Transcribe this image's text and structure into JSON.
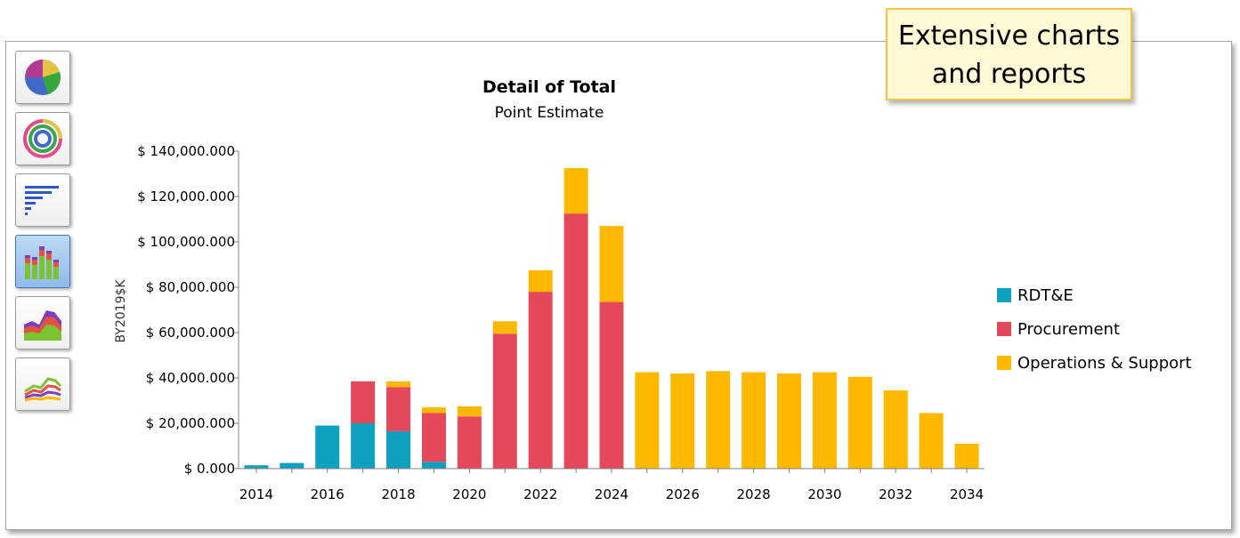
{
  "callout": {
    "line1": "Extensive charts",
    "line2": "and reports"
  },
  "toolbar": {
    "buttons": [
      {
        "icon": "pie-chart-icon",
        "active": false
      },
      {
        "icon": "ring-chart-icon",
        "active": false
      },
      {
        "icon": "horizontal-bar-chart-icon",
        "active": false
      },
      {
        "icon": "stacked-bar-chart-icon",
        "active": true
      },
      {
        "icon": "area-chart-icon",
        "active": false
      },
      {
        "icon": "line-chart-icon",
        "active": false
      }
    ]
  },
  "chart_data": {
    "type": "bar",
    "stacked": true,
    "title": "Detail of Total",
    "subtitle": "Point Estimate",
    "ylabel": "BY2019$K",
    "xlabel": "",
    "ylim": [
      0,
      140000
    ],
    "yticks": [
      0,
      20000,
      40000,
      60000,
      80000,
      100000,
      120000,
      140000
    ],
    "ytick_labels": [
      "$ 0.000",
      "$ 20,000.000",
      "$ 40,000.000",
      "$ 60,000.000",
      "$ 80,000.000",
      "$ 100,000.000",
      "$ 120,000.000",
      "$ 140,000.000"
    ],
    "categories": [
      "2014",
      "2015",
      "2016",
      "2017",
      "2018",
      "2019",
      "2020",
      "2021",
      "2022",
      "2023",
      "2024",
      "2025",
      "2026",
      "2027",
      "2028",
      "2029",
      "2030",
      "2031",
      "2032",
      "2033",
      "2034"
    ],
    "xtick_labels": [
      "2014",
      "2016",
      "2018",
      "2020",
      "2022",
      "2024",
      "2026",
      "2028",
      "2030",
      "2032",
      "2034"
    ],
    "legend_position": "right",
    "grid": false,
    "series": [
      {
        "name": "RDT&E",
        "color": "#0f9fbf",
        "values": [
          1500,
          2500,
          19000,
          20000,
          16500,
          3000,
          0,
          0,
          0,
          0,
          0,
          0,
          0,
          0,
          0,
          0,
          0,
          0,
          0,
          0,
          0
        ]
      },
      {
        "name": "Procurement",
        "color": "#e5485b",
        "values": [
          0,
          0,
          0,
          18500,
          19500,
          21500,
          23000,
          59500,
          78000,
          112500,
          73500,
          0,
          0,
          0,
          0,
          0,
          0,
          0,
          0,
          0,
          0
        ]
      },
      {
        "name": "Operations & Support",
        "color": "#ffb800",
        "values": [
          0,
          0,
          0,
          0,
          2500,
          2500,
          4500,
          5500,
          9500,
          20000,
          33500,
          42500,
          42000,
          43000,
          42500,
          42000,
          42500,
          40500,
          34500,
          24500,
          11000
        ]
      }
    ]
  }
}
